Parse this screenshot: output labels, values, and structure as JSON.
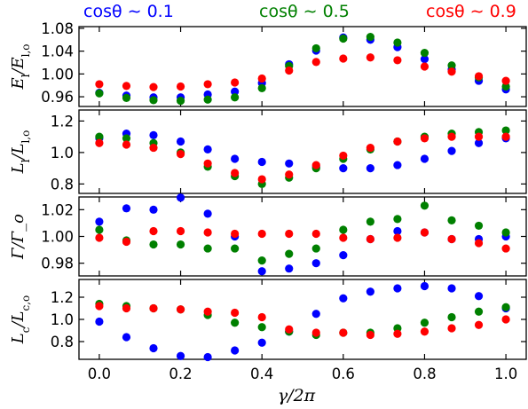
{
  "header": {
    "labels": [
      {
        "text": "cosθ ∼ 0.1",
        "color": "#0000ff"
      },
      {
        "text": "cosθ ∼ 0.5",
        "color": "#008000"
      },
      {
        "text": "cosθ ∼ 0.9",
        "color": "#ff0000"
      }
    ]
  },
  "xaxis": {
    "label": "γ/2π",
    "range": [
      -0.05,
      1.05
    ],
    "ticks": [
      0.0,
      0.2,
      0.4,
      0.6,
      0.8,
      1.0
    ],
    "tick_labels": [
      "0.0",
      "0.2",
      "0.4",
      "0.6",
      "0.8",
      "1.0"
    ]
  },
  "chart_data": {
    "type": "scatter",
    "x": [
      0.0,
      0.0667,
      0.1333,
      0.2,
      0.2667,
      0.3333,
      0.4,
      0.4667,
      0.5333,
      0.6,
      0.6667,
      0.7333,
      0.8,
      0.8667,
      0.9333,
      1.0
    ],
    "series_colors": {
      "blue": "#0000ff",
      "green": "#008000",
      "red": "#ff0000"
    },
    "panels": [
      {
        "ylabel": "E_l/E_l,o",
        "ylim": [
          0.943,
          1.083
        ],
        "yticks": [
          0.96,
          1.0,
          1.04,
          1.08
        ],
        "ytick_labels": [
          "0.96",
          "1.00",
          "1.04",
          "1.08"
        ],
        "series": [
          {
            "name": "cosθ ∼ 0.1",
            "color": "blue",
            "values": [
              0.967,
              0.962,
              0.959,
              0.959,
              0.964,
              0.969,
              0.984,
              1.017,
              1.041,
              1.064,
              1.06,
              1.047,
              1.026,
              1.008,
              0.988,
              0.973
            ]
          },
          {
            "name": "cosθ ∼ 0.5",
            "color": "green",
            "values": [
              0.966,
              0.958,
              0.954,
              0.953,
              0.955,
              0.959,
              0.975,
              1.014,
              1.045,
              1.062,
              1.065,
              1.055,
              1.037,
              1.015,
              0.994,
              0.978
            ]
          },
          {
            "name": "cosθ ∼ 0.9",
            "color": "red",
            "values": [
              0.982,
              0.979,
              0.977,
              0.978,
              0.982,
              0.985,
              0.992,
              1.006,
              1.021,
              1.027,
              1.029,
              1.024,
              1.013,
              1.004,
              0.996,
              0.988
            ]
          }
        ]
      },
      {
        "ylabel": "L_l/L_l,o",
        "ylim": [
          0.74,
          1.27
        ],
        "yticks": [
          0.8,
          1.0,
          1.2
        ],
        "ytick_labels": [
          "0.8",
          "1.0",
          "1.2"
        ],
        "series": [
          {
            "name": "cosθ ∼ 0.1",
            "color": "blue",
            "values": [
              1.09,
              1.12,
              1.11,
              1.07,
              1.02,
              0.96,
              0.94,
              0.93,
              0.91,
              0.9,
              0.9,
              0.92,
              0.96,
              1.01,
              1.06,
              1.09
            ]
          },
          {
            "name": "cosθ ∼ 0.5",
            "color": "green",
            "values": [
              1.1,
              1.09,
              1.06,
              1.0,
              0.91,
              0.85,
              0.8,
              0.84,
              0.9,
              0.96,
              1.02,
              1.07,
              1.1,
              1.12,
              1.13,
              1.14
            ]
          },
          {
            "name": "cosθ ∼ 0.9",
            "color": "red",
            "values": [
              1.06,
              1.05,
              1.03,
              0.99,
              0.93,
              0.87,
              0.83,
              0.86,
              0.92,
              0.98,
              1.03,
              1.07,
              1.09,
              1.1,
              1.1,
              1.1
            ]
          }
        ]
      },
      {
        "ylabel": "Γ/Γ_o",
        "ylim": [
          0.9705,
          1.0295
        ],
        "yticks": [
          0.98,
          1.0,
          1.02
        ],
        "ytick_labels": [
          "0.98",
          "1.00",
          "1.02"
        ],
        "series": [
          {
            "name": "cosθ ∼ 0.1",
            "color": "blue",
            "values": [
              1.011,
              1.021,
              1.02,
              1.029,
              1.017,
              1.0,
              0.974,
              0.976,
              0.98,
              0.986,
              0.998,
              1.004,
              1.003,
              0.998,
              0.998,
              1.0
            ]
          },
          {
            "name": "cosθ ∼ 0.5",
            "color": "green",
            "values": [
              1.005,
              0.997,
              0.994,
              0.994,
              0.991,
              0.991,
              0.982,
              0.987,
              0.991,
              1.005,
              1.011,
              1.013,
              1.023,
              1.012,
              1.008,
              1.003
            ]
          },
          {
            "name": "cosθ ∼ 0.9",
            "color": "red",
            "values": [
              0.999,
              0.996,
              1.004,
              1.004,
              1.003,
              1.002,
              1.002,
              1.002,
              1.002,
              0.999,
              0.998,
              0.999,
              1.003,
              0.998,
              0.995,
              0.991
            ]
          }
        ]
      },
      {
        "ylabel": "L_c/L_c,o",
        "ylim": [
          0.64,
          1.36
        ],
        "yticks": [
          0.8,
          1.0,
          1.2
        ],
        "ytick_labels": [
          "0.8",
          "1.0",
          "1.2"
        ],
        "series": [
          {
            "name": "cosθ ∼ 0.1",
            "color": "blue",
            "values": [
              0.98,
              0.84,
              0.74,
              0.67,
              0.66,
              0.72,
              0.79,
              0.89,
              1.05,
              1.19,
              1.25,
              1.28,
              1.3,
              1.28,
              1.21,
              1.1
            ]
          },
          {
            "name": "cosθ ∼ 0.5",
            "color": "green",
            "values": [
              1.14,
              1.12,
              1.1,
              1.09,
              1.04,
              0.97,
              0.93,
              0.89,
              0.86,
              0.88,
              0.88,
              0.92,
              0.97,
              1.02,
              1.07,
              1.11
            ]
          },
          {
            "name": "cosθ ∼ 0.9",
            "color": "red",
            "values": [
              1.12,
              1.1,
              1.1,
              1.09,
              1.07,
              1.06,
              1.02,
              0.91,
              0.88,
              0.88,
              0.86,
              0.87,
              0.89,
              0.92,
              0.95,
              1.0
            ]
          }
        ]
      }
    ]
  }
}
